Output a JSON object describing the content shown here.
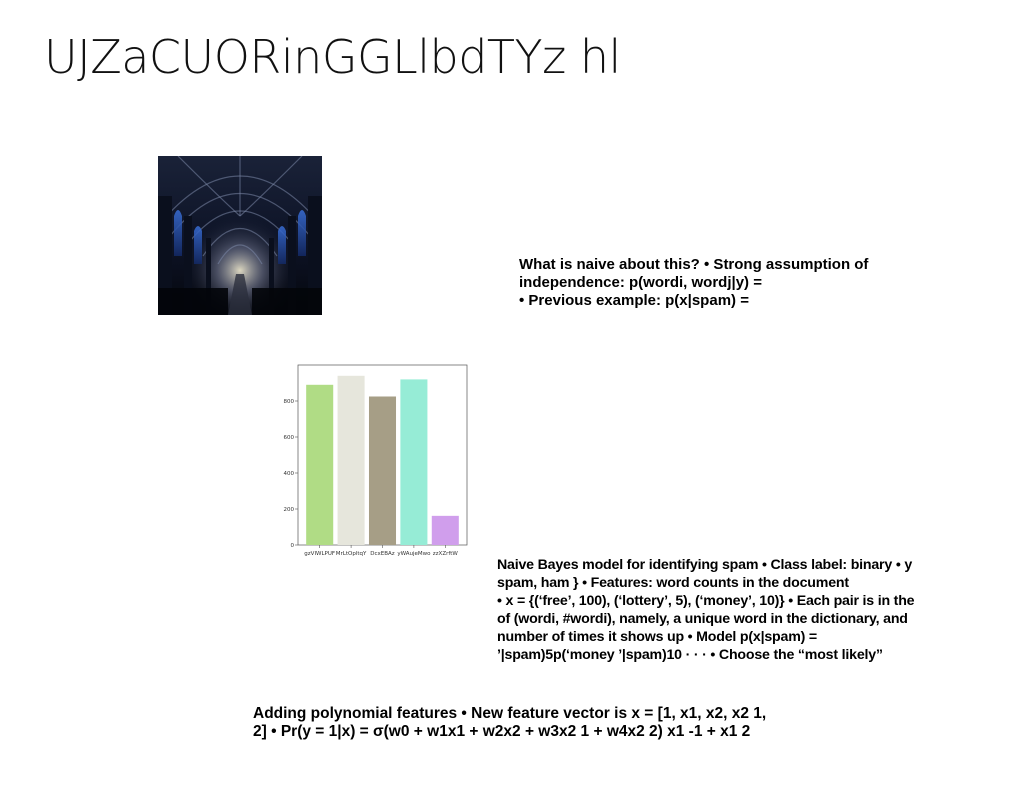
{
  "slide": {
    "title": "UJZaCUORinGGLlbdTYz hl"
  },
  "image": {
    "icon": "cathedral-interior-photo"
  },
  "text_block_1": {
    "lines": [
      "What is naive about this? • Strong assumption of",
      "independence: p(wordi, wordj|y) =",
      "• Previous example: p(x|spam) ="
    ]
  },
  "text_block_2": {
    "lines": [
      "Naive Bayes model for identifying spam • Class label: binary • y",
      "spam, ham } • Features: word counts in the document",
      "• x = {(‘free’, 100), (‘lottery’, 5), (‘money’, 10)} • Each pair is in the",
      "of (wordi, #wordi), namely, a unique word in the dictionary, and",
      "number of times it shows up • Model p(x|spam) =",
      "’|spam)5p(‘money ’|spam)10 · · · • Choose the “most likely”"
    ]
  },
  "text_block_3": {
    "lines": [
      "Adding polynomial features • New feature vector is x = [1, x1, x2, x2 1,",
      "2] • Pr(y = 1|x) = σ(w0 + w1x1 + w2x2 + w3x2 1 + w4x2 2) x1 -1 + x1 2"
    ]
  },
  "chart_data": {
    "type": "bar",
    "title": "",
    "xlabel": "",
    "ylabel": "",
    "categories": [
      "gzVIWLPUF",
      "MrLtOpltqY",
      "DcxEBAz",
      "yWAujeMwo",
      "zzXZrftW"
    ],
    "values": [
      890,
      940,
      825,
      920,
      162
    ],
    "colors": [
      "#b0dc85",
      "#e6e6dc",
      "#a69e86",
      "#96ecd6",
      "#d09eec"
    ],
    "ylim": [
      0,
      1000
    ],
    "yticks": [
      0,
      200,
      400,
      600,
      800
    ],
    "grid": false,
    "legend": "none"
  }
}
